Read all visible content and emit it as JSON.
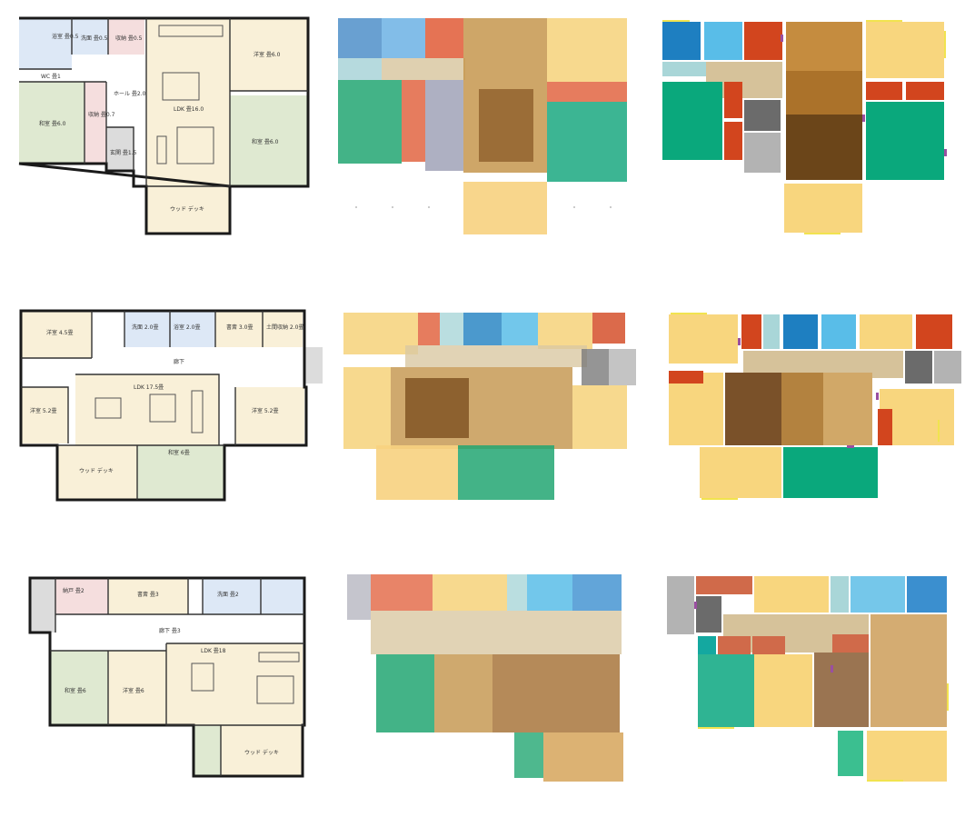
{
  "rows": [
    {
      "plan_labels": [
        {
          "id": "r1-bath",
          "text": "浴室 畳0.5"
        },
        {
          "id": "r1-wash",
          "text": "洗面 畳0.5"
        },
        {
          "id": "r1-closet1",
          "text": "収納 畳0.5"
        },
        {
          "id": "r1-room1",
          "text": "洋室 畳6.0"
        },
        {
          "id": "r1-wc",
          "text": "WC 畳1"
        },
        {
          "id": "r1-hall",
          "text": "ホール 畳2.0"
        },
        {
          "id": "r1-closet2",
          "text": "収納 畳0.7"
        },
        {
          "id": "r1-washitsu1",
          "text": "和室 畳6.0"
        },
        {
          "id": "r1-ldk",
          "text": "LDK 畳16.0"
        },
        {
          "id": "r1-washitsu2",
          "text": "和室 畳6.0"
        },
        {
          "id": "r1-entry",
          "text": "玄関 畳1.5"
        },
        {
          "id": "r1-deck",
          "text": "ウッド デッキ"
        }
      ]
    },
    {
      "plan_labels": [
        {
          "id": "r2-room1",
          "text": "洋室 4.5畳"
        },
        {
          "id": "r2-wash",
          "text": "洗面 2.0畳"
        },
        {
          "id": "r2-bath",
          "text": "浴室 2.0畳"
        },
        {
          "id": "r2-study",
          "text": "書斎 3.0畳"
        },
        {
          "id": "r2-storage",
          "text": "土間収納 2.0畳"
        },
        {
          "id": "r2-hall",
          "text": "廊下"
        },
        {
          "id": "r2-room2",
          "text": "洋室 5.2畳"
        },
        {
          "id": "r2-ldk",
          "text": "LDK 17.5畳"
        },
        {
          "id": "r2-room3",
          "text": "洋室 5.2畳"
        },
        {
          "id": "r2-deck",
          "text": "ウッド デッキ"
        },
        {
          "id": "r2-washitsu",
          "text": "和室 6畳"
        }
      ]
    },
    {
      "plan_labels": [
        {
          "id": "r3-storage",
          "text": "納戸 畳2"
        },
        {
          "id": "r3-study",
          "text": "書斎 畳3"
        },
        {
          "id": "r3-wash",
          "text": "洗面 畳2"
        },
        {
          "id": "r3-hall",
          "text": "廊下 畳3"
        },
        {
          "id": "r3-washitsu",
          "text": "和室 畳6"
        },
        {
          "id": "r3-room",
          "text": "洋室 畳6"
        },
        {
          "id": "r3-ldk",
          "text": "LDK 畳18"
        },
        {
          "id": "r3-deck",
          "text": "ウッド デッキ"
        }
      ]
    }
  ],
  "colors": {
    "living": "#b07a2c",
    "living_dark": "#6b4519",
    "bedroom": "#f8d67e",
    "washitsu": "#0aa87c",
    "bath": "#1e7fc1",
    "wash": "#59bde8",
    "toilet_storage": "#d2451e",
    "hall": "#d6c29a",
    "entry": "#6b6b6b",
    "stair": "#b3b3b3",
    "door": "#9a4fa0",
    "window": "#f1e34f"
  }
}
